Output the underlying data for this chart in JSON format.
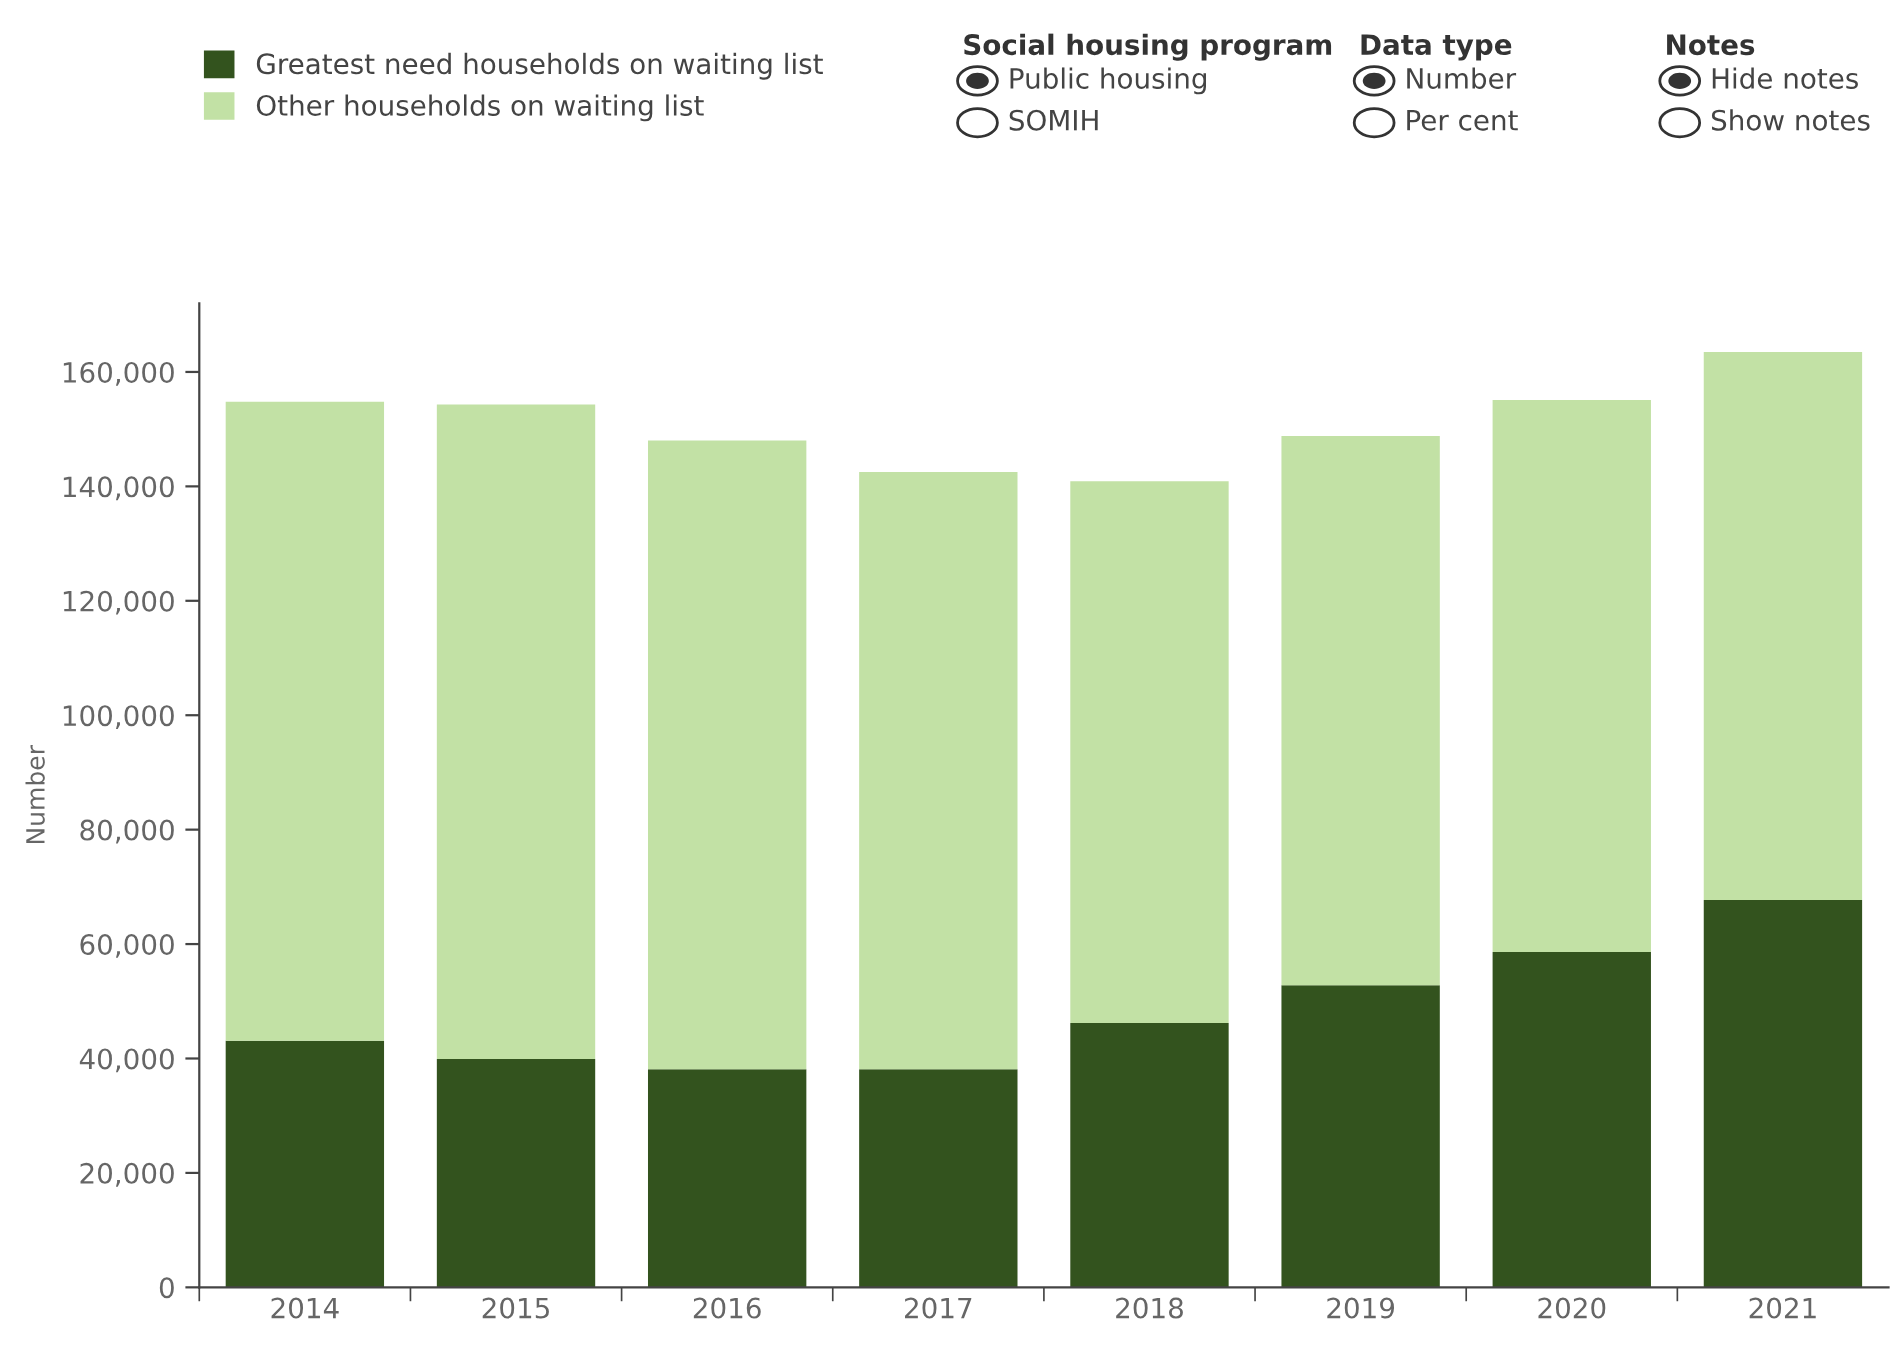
{
  "chart_data": {
    "type": "bar",
    "stacked": true,
    "ylabel": "Number",
    "categories": [
      "2014",
      "2015",
      "2016",
      "2017",
      "2018",
      "2019",
      "2020",
      "2021"
    ],
    "series": [
      {
        "name": "Greatest need households on waiting list",
        "color": "#33531e",
        "values": [
          43100,
          39900,
          38100,
          38100,
          46200,
          52800,
          58600,
          67700
        ]
      },
      {
        "name": "Other households on waiting list",
        "color": "#c2e1a5",
        "values": [
          111700,
          114400,
          109900,
          104400,
          94700,
          96000,
          96500,
          95800
        ]
      }
    ],
    "ylim": [
      0,
      172000
    ],
    "yticks": [
      {
        "value": 0,
        "label": "0"
      },
      {
        "value": 20000,
        "label": "20,000"
      },
      {
        "value": 40000,
        "label": "40,000"
      },
      {
        "value": 60000,
        "label": "60,000"
      },
      {
        "value": 80000,
        "label": "80,000"
      },
      {
        "value": 100000,
        "label": "100,000"
      },
      {
        "value": 120000,
        "label": "120,000"
      },
      {
        "value": 140000,
        "label": "140,000"
      },
      {
        "value": 160000,
        "label": "160,000"
      }
    ],
    "grid": false,
    "legend": "top left",
    "annotations": [
      "Social housing program",
      "Public housing",
      "SOMIH",
      "Data type",
      "Number",
      "Per cent",
      "Notes",
      "Hide notes",
      "Show notes"
    ]
  }
}
